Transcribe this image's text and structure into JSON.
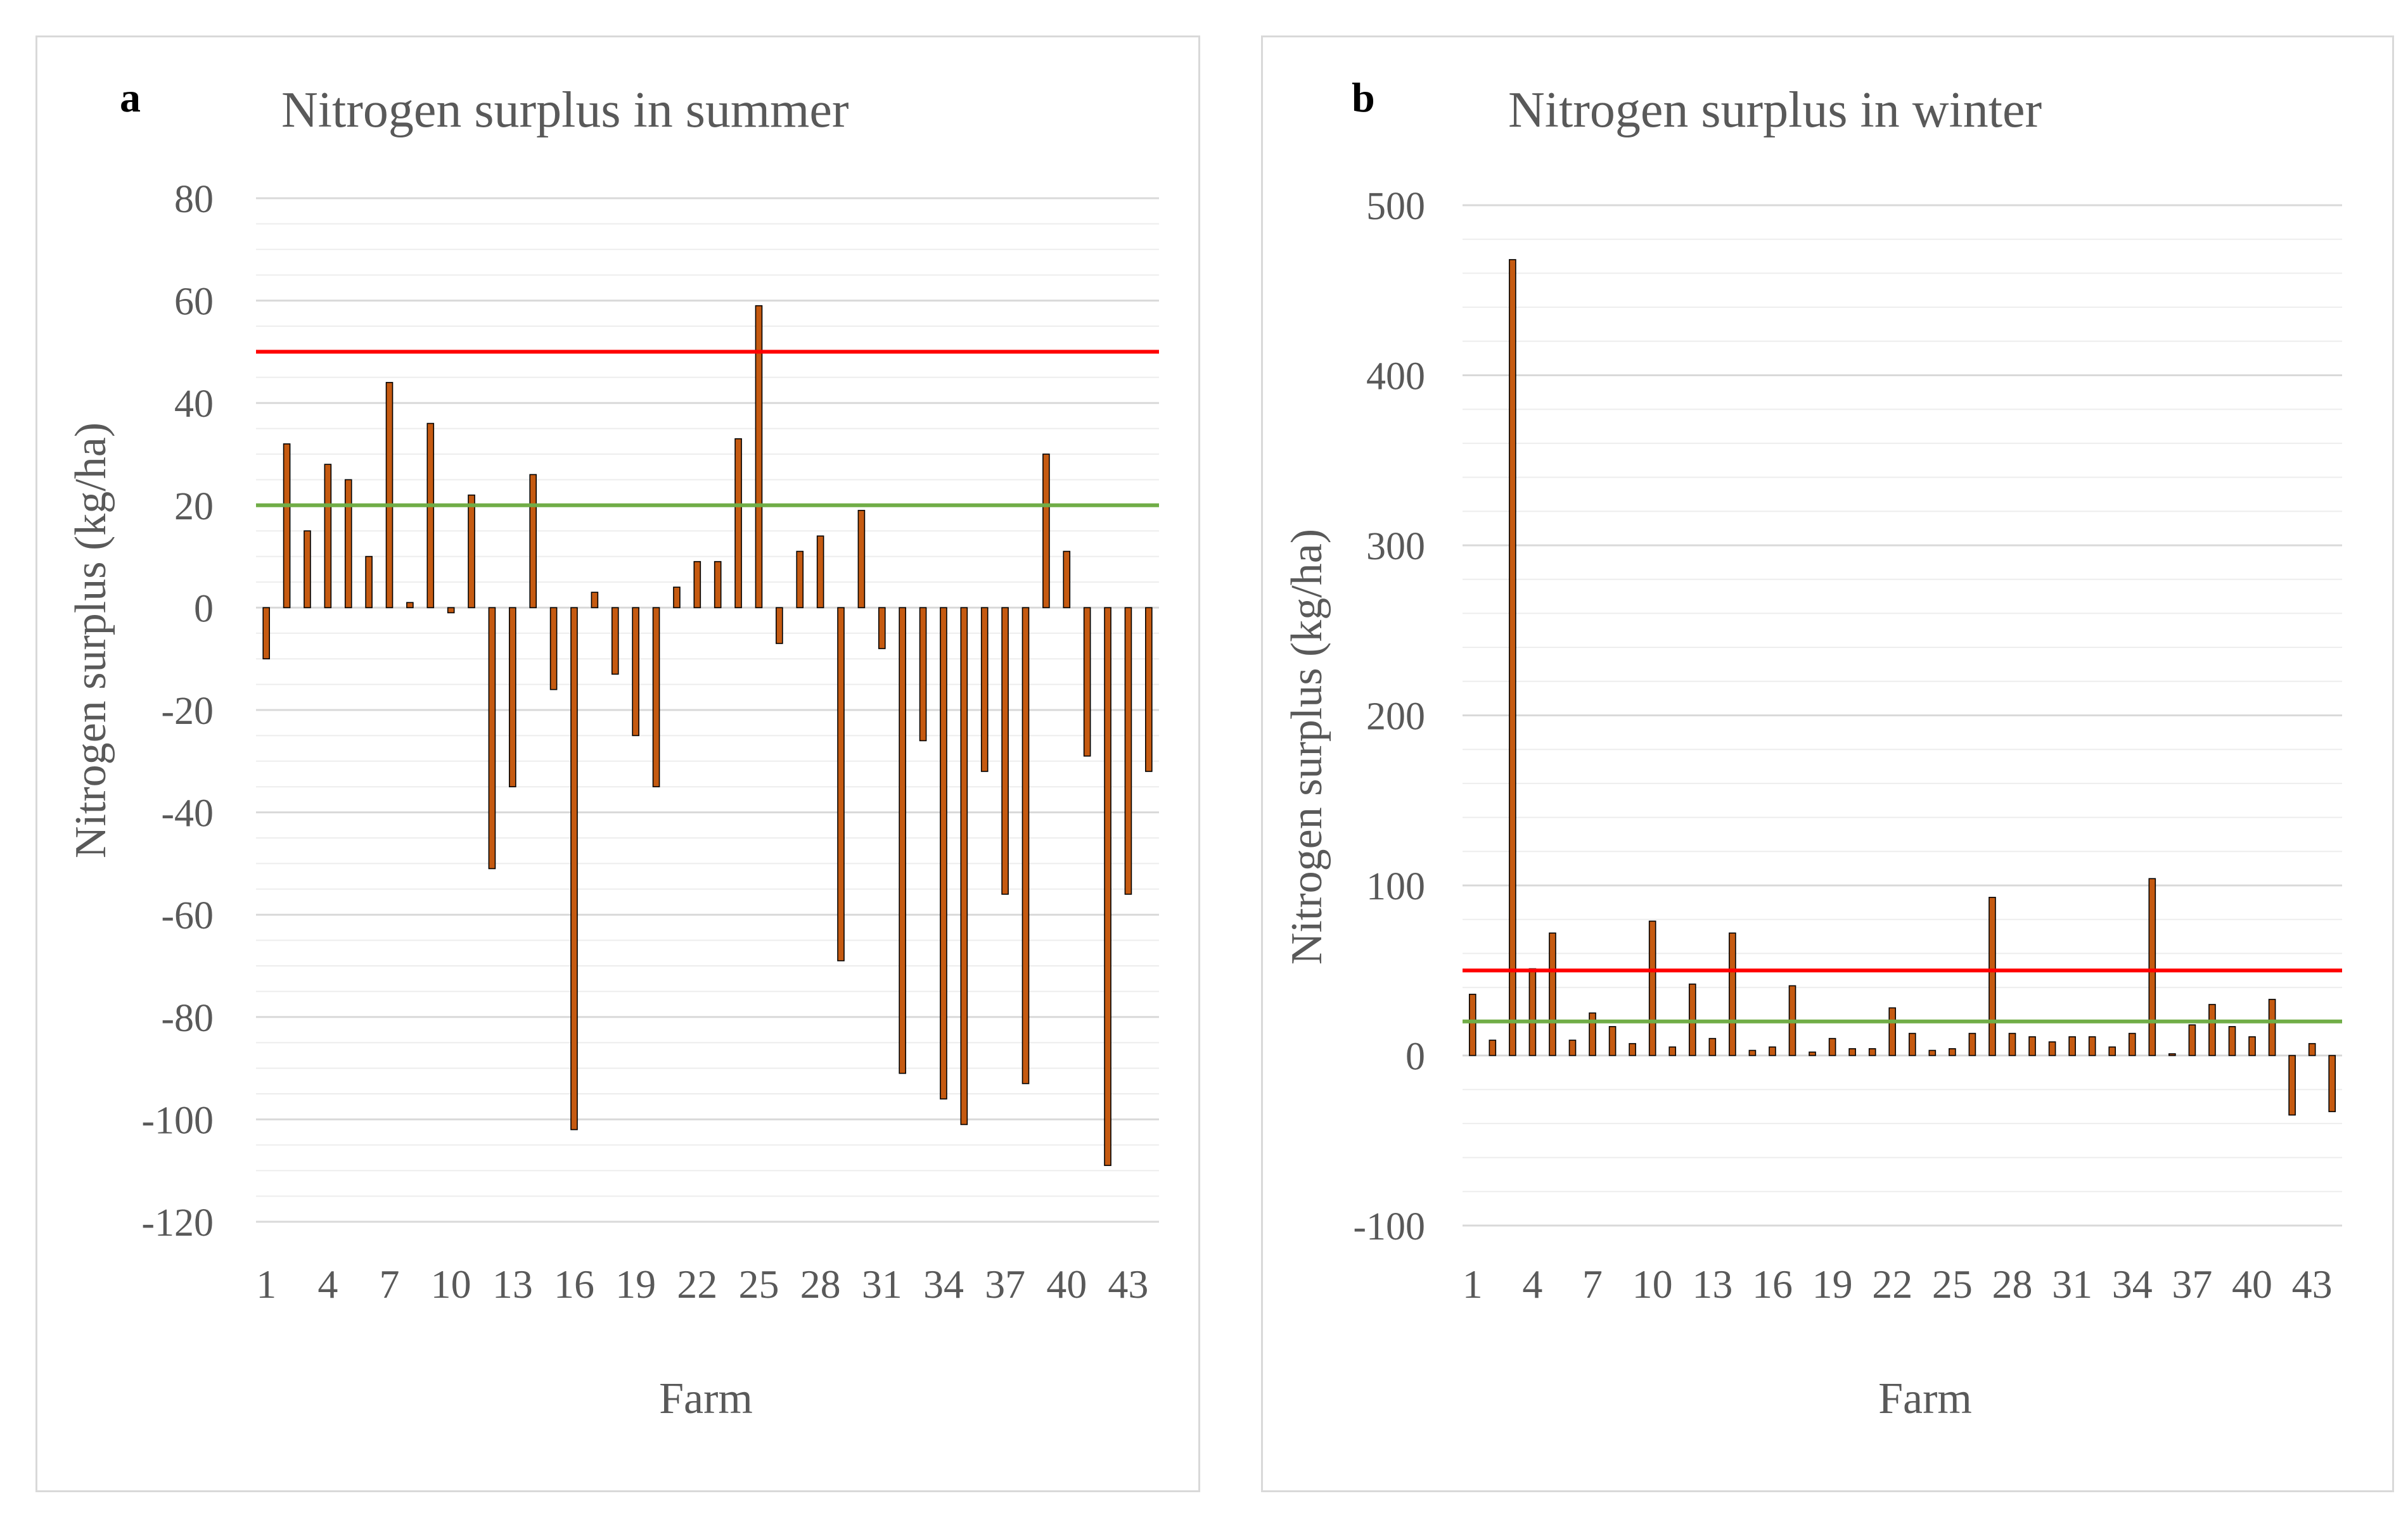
{
  "panels": [
    {
      "letter": "a",
      "title": "Nitrogen surplus in summer",
      "ylabel": "Nitrogen surplus (kg/ha)",
      "xlabel": "Farm"
    },
    {
      "letter": "b",
      "title": "Nitrogen surplus in winter",
      "ylabel": "Nitrogen surplus (kg/ha)",
      "xlabel": "Farm"
    }
  ],
  "colors": {
    "bar_fill": "#c55a11",
    "bar_stroke": "#000000",
    "threshold_high": "#ff0000",
    "threshold_low": "#70ad47",
    "gridline": "#d9d9d9",
    "minor_gridline": "#ededed",
    "text": "#595959"
  },
  "chart_data": [
    {
      "type": "bar",
      "title": "Nitrogen surplus in summer",
      "xlabel": "Farm",
      "ylabel": "Nitrogen surplus (kg/ha)",
      "categories": [
        1,
        2,
        3,
        4,
        5,
        6,
        7,
        8,
        9,
        10,
        11,
        12,
        13,
        14,
        15,
        16,
        17,
        18,
        19,
        20,
        21,
        22,
        23,
        24,
        25,
        26,
        27,
        28,
        29,
        30,
        31,
        32,
        33,
        34,
        35,
        36,
        37,
        38,
        39,
        40,
        41,
        42,
        43,
        44
      ],
      "x_tick_labels": [
        "1",
        "4",
        "7",
        "10",
        "13",
        "16",
        "19",
        "22",
        "25",
        "28",
        "31",
        "34",
        "37",
        "40",
        "43"
      ],
      "values": [
        -10,
        32,
        15,
        28,
        25,
        10,
        44,
        1,
        36,
        -1,
        22,
        -51,
        -35,
        26,
        -16,
        -102,
        3,
        -13,
        -25,
        -35,
        4,
        9,
        9,
        33,
        59,
        -7,
        11,
        14,
        -69,
        19,
        -8,
        -91,
        -26,
        -96,
        -101,
        -32,
        -56,
        -93,
        30,
        11,
        -29,
        -109,
        -56,
        -32
      ],
      "ylim": [
        -120,
        80
      ],
      "y_ticks": [
        -120,
        -100,
        -80,
        -60,
        -40,
        -20,
        0,
        20,
        40,
        60,
        80
      ],
      "y_tick_labels": [
        "-120",
        "-100",
        "-80",
        "-60",
        "-40",
        "-20",
        "0",
        "20",
        "40",
        "60",
        "80"
      ],
      "minor_step": 5,
      "reference_lines": [
        {
          "name": "upper threshold",
          "value": 50,
          "color": "#ff0000"
        },
        {
          "name": "lower threshold",
          "value": 20,
          "color": "#70ad47"
        }
      ],
      "grid": true
    },
    {
      "type": "bar",
      "title": "Nitrogen surplus in winter",
      "xlabel": "Farm",
      "ylabel": "Nitrogen surplus (kg/ha)",
      "categories": [
        1,
        2,
        3,
        4,
        5,
        6,
        7,
        8,
        9,
        10,
        11,
        12,
        13,
        14,
        15,
        16,
        17,
        18,
        19,
        20,
        21,
        22,
        23,
        24,
        25,
        26,
        27,
        28,
        29,
        30,
        31,
        32,
        33,
        34,
        35,
        36,
        37,
        38,
        39,
        40,
        41,
        42,
        43,
        44
      ],
      "x_tick_labels": [
        "1",
        "4",
        "7",
        "10",
        "13",
        "16",
        "19",
        "22",
        "25",
        "28",
        "31",
        "34",
        "37",
        "40",
        "43"
      ],
      "values": [
        36,
        9,
        468,
        51,
        72,
        9,
        25,
        17,
        7,
        79,
        5,
        42,
        10,
        72,
        3,
        5,
        41,
        2,
        10,
        4,
        4,
        28,
        13,
        3,
        4,
        13,
        93,
        13,
        11,
        8,
        11,
        11,
        5,
        13,
        104,
        1,
        18,
        30,
        17,
        11,
        33,
        -35,
        7,
        -33
      ],
      "ylim": [
        -100,
        500
      ],
      "y_ticks": [
        -100,
        0,
        100,
        200,
        300,
        400,
        500
      ],
      "y_tick_labels": [
        "-100",
        "0",
        "100",
        "200",
        "300",
        "400",
        "500"
      ],
      "minor_step": 20,
      "reference_lines": [
        {
          "name": "upper threshold",
          "value": 50,
          "color": "#ff0000"
        },
        {
          "name": "lower threshold",
          "value": 20,
          "color": "#70ad47"
        }
      ],
      "grid": true
    }
  ]
}
